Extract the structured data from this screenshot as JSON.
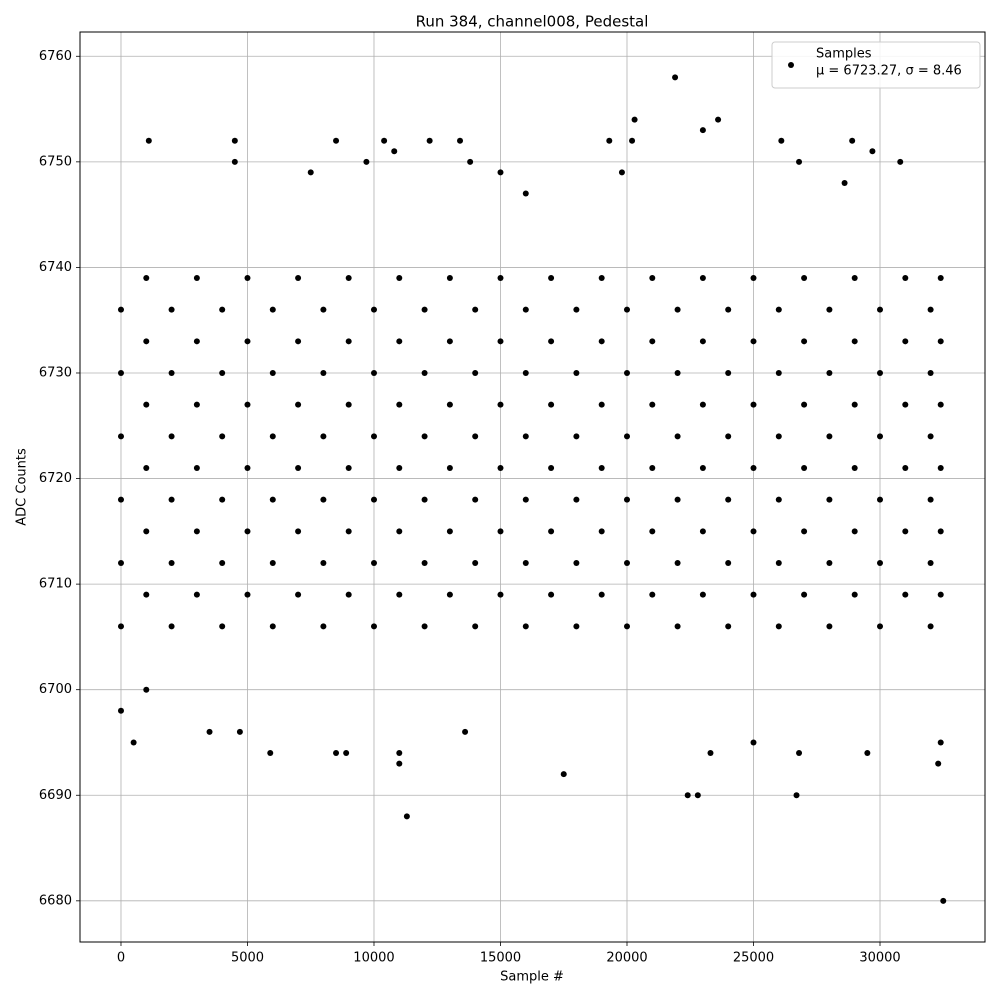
{
  "chart_data": {
    "type": "scatter",
    "title": "Run 384, channel008, Pedestal",
    "x_label": "Sample #",
    "y_label": "ADC Counts",
    "xlim": [
      -1620,
      34150
    ],
    "ylim": [
      6676.1,
      6762.3
    ],
    "xticks": [
      0,
      5000,
      10000,
      15000,
      20000,
      25000,
      30000
    ],
    "yticks": [
      6680,
      6690,
      6700,
      6710,
      6720,
      6730,
      6740,
      6750,
      6760
    ],
    "grid": true,
    "legend_position": "upper right",
    "annotation": "μ = 6723.27, σ = 8.46",
    "series": [
      {
        "name": "Samples",
        "color": "#000000",
        "x": [
          0,
          2000,
          4000,
          6000,
          8000,
          10000,
          12000,
          14000,
          16000,
          18000,
          20000,
          22000,
          24000,
          26000,
          28000,
          30000,
          32000,
          1000,
          3000,
          5000,
          7000,
          9000,
          11000,
          13000,
          15000,
          17000,
          19000,
          21000,
          23000,
          25000,
          27000,
          29000,
          31000,
          32400,
          0,
          2000,
          4000,
          6000,
          8000,
          10000,
          12000,
          14000,
          16000,
          18000,
          20000,
          22000,
          24000,
          26000,
          28000,
          30000,
          32000,
          1000,
          3000,
          5000,
          7000,
          9000,
          11000,
          13000,
          15000,
          17000,
          19000,
          21000,
          23000,
          25000,
          27000,
          29000,
          31000,
          32400,
          0,
          2000,
          4000,
          6000,
          8000,
          10000,
          12000,
          14000,
          16000,
          18000,
          20000,
          22000,
          24000,
          26000,
          28000,
          30000,
          32000,
          1000,
          3000,
          5000,
          7000,
          9000,
          11000,
          13000,
          15000,
          17000,
          19000,
          21000,
          23000,
          25000,
          27000,
          29000,
          31000,
          32400,
          0,
          2000,
          4000,
          6000,
          8000,
          10000,
          12000,
          14000,
          16000,
          18000,
          20000,
          22000,
          24000,
          26000,
          28000,
          30000,
          32000,
          1000,
          3000,
          5000,
          7000,
          9000,
          11000,
          13000,
          15000,
          17000,
          19000,
          21000,
          23000,
          25000,
          27000,
          29000,
          31000,
          32400,
          0,
          2000,
          4000,
          6000,
          8000,
          10000,
          12000,
          14000,
          16000,
          18000,
          20000,
          22000,
          24000,
          26000,
          28000,
          30000,
          32000,
          1000,
          3000,
          5000,
          7000,
          9000,
          11000,
          13000,
          15000,
          17000,
          19000,
          21000,
          23000,
          25000,
          27000,
          29000,
          31000,
          32400,
          0,
          2000,
          4000,
          6000,
          8000,
          10000,
          12000,
          14000,
          16000,
          18000,
          20000,
          22000,
          24000,
          26000,
          28000,
          30000,
          32000,
          1000,
          3000,
          5000,
          7000,
          9000,
          11000,
          13000,
          15000,
          17000,
          19000,
          21000,
          23000,
          25000,
          27000,
          29000,
          31000,
          32400,
          0,
          500,
          1100,
          4500,
          4500,
          5900,
          8500,
          8500,
          8900,
          9700,
          10400,
          10800,
          11000,
          11000,
          11300,
          12200,
          13400,
          13800,
          13600,
          17500,
          19300,
          20300,
          20200,
          21900,
          22400,
          22800,
          23000,
          23300,
          23600,
          25000,
          26100,
          26700,
          26800,
          26800,
          28900,
          29500,
          29700,
          30800,
          32300,
          32400,
          32500,
          1000,
          3500,
          4700,
          15000,
          16000,
          19800,
          28600,
          7500
        ],
        "values": [
          6706,
          6706,
          6706,
          6706,
          6706,
          6706,
          6706,
          6706,
          6706,
          6706,
          6706,
          6706,
          6706,
          6706,
          6706,
          6706,
          6706,
          6709,
          6709,
          6709,
          6709,
          6709,
          6709,
          6709,
          6709,
          6709,
          6709,
          6709,
          6709,
          6709,
          6709,
          6709,
          6709,
          6709,
          6712,
          6712,
          6712,
          6712,
          6712,
          6712,
          6712,
          6712,
          6712,
          6712,
          6712,
          6712,
          6712,
          6712,
          6712,
          6712,
          6712,
          6715,
          6715,
          6715,
          6715,
          6715,
          6715,
          6715,
          6715,
          6715,
          6715,
          6715,
          6715,
          6715,
          6715,
          6715,
          6715,
          6715,
          6718,
          6718,
          6718,
          6718,
          6718,
          6718,
          6718,
          6718,
          6718,
          6718,
          6718,
          6718,
          6718,
          6718,
          6718,
          6718,
          6718,
          6721,
          6721,
          6721,
          6721,
          6721,
          6721,
          6721,
          6721,
          6721,
          6721,
          6721,
          6721,
          6721,
          6721,
          6721,
          6721,
          6721,
          6724,
          6724,
          6724,
          6724,
          6724,
          6724,
          6724,
          6724,
          6724,
          6724,
          6724,
          6724,
          6724,
          6724,
          6724,
          6724,
          6724,
          6727,
          6727,
          6727,
          6727,
          6727,
          6727,
          6727,
          6727,
          6727,
          6727,
          6727,
          6727,
          6727,
          6727,
          6727,
          6727,
          6727,
          6730,
          6730,
          6730,
          6730,
          6730,
          6730,
          6730,
          6730,
          6730,
          6730,
          6730,
          6730,
          6730,
          6730,
          6730,
          6730,
          6730,
          6733,
          6733,
          6733,
          6733,
          6733,
          6733,
          6733,
          6733,
          6733,
          6733,
          6733,
          6733,
          6733,
          6733,
          6733,
          6733,
          6733,
          6736,
          6736,
          6736,
          6736,
          6736,
          6736,
          6736,
          6736,
          6736,
          6736,
          6736,
          6736,
          6736,
          6736,
          6736,
          6736,
          6736,
          6739,
          6739,
          6739,
          6739,
          6739,
          6739,
          6739,
          6739,
          6739,
          6739,
          6739,
          6739,
          6739,
          6739,
          6739,
          6739,
          6739,
          6698,
          6695,
          6752,
          6752,
          6750,
          6694,
          6752,
          6694,
          6694,
          6750,
          6752,
          6751,
          6693,
          6694,
          6688,
          6752,
          6752,
          6750,
          6696,
          6692,
          6752,
          6754,
          6752,
          6758,
          6690,
          6690,
          6753,
          6694,
          6754,
          6695,
          6752,
          6690,
          6750,
          6694,
          6752,
          6694,
          6751,
          6750,
          6693,
          6695,
          6680,
          6700,
          6696,
          6696,
          6749,
          6747,
          6749,
          6748,
          6749
        ]
      }
    ]
  }
}
